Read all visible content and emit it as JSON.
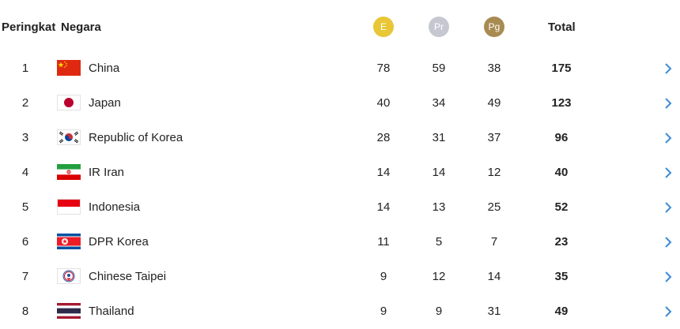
{
  "header": {
    "rank": "Peringkat",
    "country": "Negara",
    "gold": "E",
    "silver": "Pr",
    "bronze": "Pg",
    "total": "Total"
  },
  "colors": {
    "gold": "#e8c636",
    "silver": "#c5c8d1",
    "bronze": "#a88b52",
    "chevron": "#3d8bd6"
  },
  "rows": [
    {
      "rank": "1",
      "country": "China",
      "flag": "china-flag-icon",
      "gold": "78",
      "silver": "59",
      "bronze": "38",
      "total": "175"
    },
    {
      "rank": "2",
      "country": "Japan",
      "flag": "japan-flag-icon",
      "gold": "40",
      "silver": "34",
      "bronze": "49",
      "total": "123"
    },
    {
      "rank": "3",
      "country": "Republic of Korea",
      "flag": "korea-flag-icon",
      "gold": "28",
      "silver": "31",
      "bronze": "37",
      "total": "96"
    },
    {
      "rank": "4",
      "country": "IR Iran",
      "flag": "iran-flag-icon",
      "gold": "14",
      "silver": "14",
      "bronze": "12",
      "total": "40"
    },
    {
      "rank": "5",
      "country": "Indonesia",
      "flag": "indonesia-flag-icon",
      "gold": "14",
      "silver": "13",
      "bronze": "25",
      "total": "52"
    },
    {
      "rank": "6",
      "country": "DPR Korea",
      "flag": "dpr-korea-flag-icon",
      "gold": "11",
      "silver": "5",
      "bronze": "7",
      "total": "23"
    },
    {
      "rank": "7",
      "country": "Chinese Taipei",
      "flag": "chinese-taipei-flag-icon",
      "gold": "9",
      "silver": "12",
      "bronze": "14",
      "total": "35"
    },
    {
      "rank": "8",
      "country": "Thailand",
      "flag": "thailand-flag-icon",
      "gold": "9",
      "silver": "9",
      "bronze": "31",
      "total": "49"
    }
  ]
}
